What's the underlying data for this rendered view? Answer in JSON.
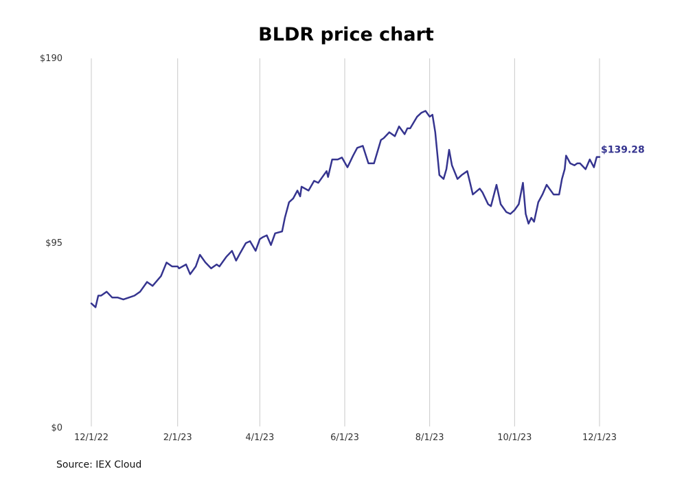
{
  "chart_data": {
    "type": "line",
    "title": "BLDR price chart",
    "xlabel": "",
    "ylabel": "",
    "ylim": [
      0,
      190
    ],
    "y_ticks": [
      {
        "value": 0,
        "label": "$0"
      },
      {
        "value": 95,
        "label": "$95"
      },
      {
        "value": 190,
        "label": "$190"
      }
    ],
    "x_ticks": [
      {
        "date": "2022-12-01",
        "label": "12/1/22"
      },
      {
        "date": "2023-02-01",
        "label": "2/1/23"
      },
      {
        "date": "2023-04-01",
        "label": "4/1/23"
      },
      {
        "date": "2023-06-01",
        "label": "6/1/23"
      },
      {
        "date": "2023-08-01",
        "label": "8/1/23"
      },
      {
        "date": "2023-10-01",
        "label": "10/1/23"
      },
      {
        "date": "2023-12-01",
        "label": "12/1/23"
      }
    ],
    "xlim": [
      "2022-12-01",
      "2023-12-01"
    ],
    "grid": "vertical",
    "line_color": "#35348f",
    "last_value_label": "$139.28",
    "series": [
      {
        "x": [
          "2022-12-01",
          "2022-12-04",
          "2022-12-06",
          "2022-12-08",
          "2022-12-12",
          "2022-12-16",
          "2022-12-20",
          "2022-12-24",
          "2022-12-28",
          "2023-01-01",
          "2023-01-05",
          "2023-01-10",
          "2023-01-14",
          "2023-01-20",
          "2023-01-24",
          "2023-01-28",
          "2023-02-01",
          "2023-02-02",
          "2023-02-07",
          "2023-02-10",
          "2023-02-14",
          "2023-02-17",
          "2023-02-21",
          "2023-02-25",
          "2023-03-01",
          "2023-03-03",
          "2023-03-06",
          "2023-03-08",
          "2023-03-12",
          "2023-03-15",
          "2023-03-18",
          "2023-03-22",
          "2023-03-25",
          "2023-03-29",
          "2023-04-01",
          "2023-04-03",
          "2023-04-06",
          "2023-04-09",
          "2023-04-12",
          "2023-04-17",
          "2023-04-19",
          "2023-04-22",
          "2023-04-25",
          "2023-04-28",
          "2023-04-30",
          "2023-05-01",
          "2023-05-06",
          "2023-05-10",
          "2023-05-13",
          "2023-05-16",
          "2023-05-19",
          "2023-05-20",
          "2023-05-23",
          "2023-05-27",
          "2023-05-30",
          "2023-06-03",
          "2023-06-07",
          "2023-06-10",
          "2023-06-14",
          "2023-06-18",
          "2023-06-22",
          "2023-06-27",
          "2023-06-29",
          "2023-07-03",
          "2023-07-07",
          "2023-07-10",
          "2023-07-14",
          "2023-07-16",
          "2023-07-18",
          "2023-07-23",
          "2023-07-26",
          "2023-07-29",
          "2023-08-01",
          "2023-08-03",
          "2023-08-05",
          "2023-08-08",
          "2023-08-11",
          "2023-08-13",
          "2023-08-15",
          "2023-08-17",
          "2023-08-21",
          "2023-08-24",
          "2023-08-28",
          "2023-08-30",
          "2023-09-01",
          "2023-09-06",
          "2023-09-08",
          "2023-09-12",
          "2023-09-14",
          "2023-09-18",
          "2023-09-21",
          "2023-09-25",
          "2023-09-28",
          "2023-10-01",
          "2023-10-04",
          "2023-10-07",
          "2023-10-09",
          "2023-10-11",
          "2023-10-13",
          "2023-10-15",
          "2023-10-18",
          "2023-10-21",
          "2023-10-24",
          "2023-10-26",
          "2023-10-29",
          "2023-11-02",
          "2023-11-04",
          "2023-11-06",
          "2023-11-07",
          "2023-11-10",
          "2023-11-13",
          "2023-11-15",
          "2023-11-17",
          "2023-11-21",
          "2023-11-24",
          "2023-11-27",
          "2023-11-29",
          "2023-12-01"
        ],
        "values": [
          64,
          62,
          68,
          68,
          70,
          67,
          67,
          66,
          67,
          68,
          70,
          75,
          73,
          78,
          85,
          83,
          83,
          82,
          84,
          79,
          83,
          89,
          85,
          82,
          84,
          83,
          86,
          88,
          91,
          86,
          90,
          95,
          96,
          91,
          97,
          98,
          99,
          94,
          100,
          101,
          108,
          116,
          118,
          122,
          119,
          124,
          122,
          127,
          126,
          129,
          132,
          129,
          138,
          138,
          139,
          134,
          140,
          144,
          145,
          136,
          136,
          148,
          149,
          152,
          150,
          155,
          151,
          154,
          154,
          160,
          162,
          163,
          160,
          161,
          152,
          130,
          128,
          133,
          143,
          135,
          128,
          130,
          132,
          126,
          120,
          123,
          121,
          115,
          114,
          125,
          115,
          111,
          110,
          112,
          115,
          126,
          110,
          105,
          108,
          106,
          116,
          120,
          125,
          123,
          120,
          120,
          128,
          133,
          140,
          136,
          135,
          136,
          136,
          133,
          138,
          134,
          139.28,
          139.28
        ]
      }
    ]
  },
  "footer": {
    "source": "Source: IEX Cloud"
  }
}
